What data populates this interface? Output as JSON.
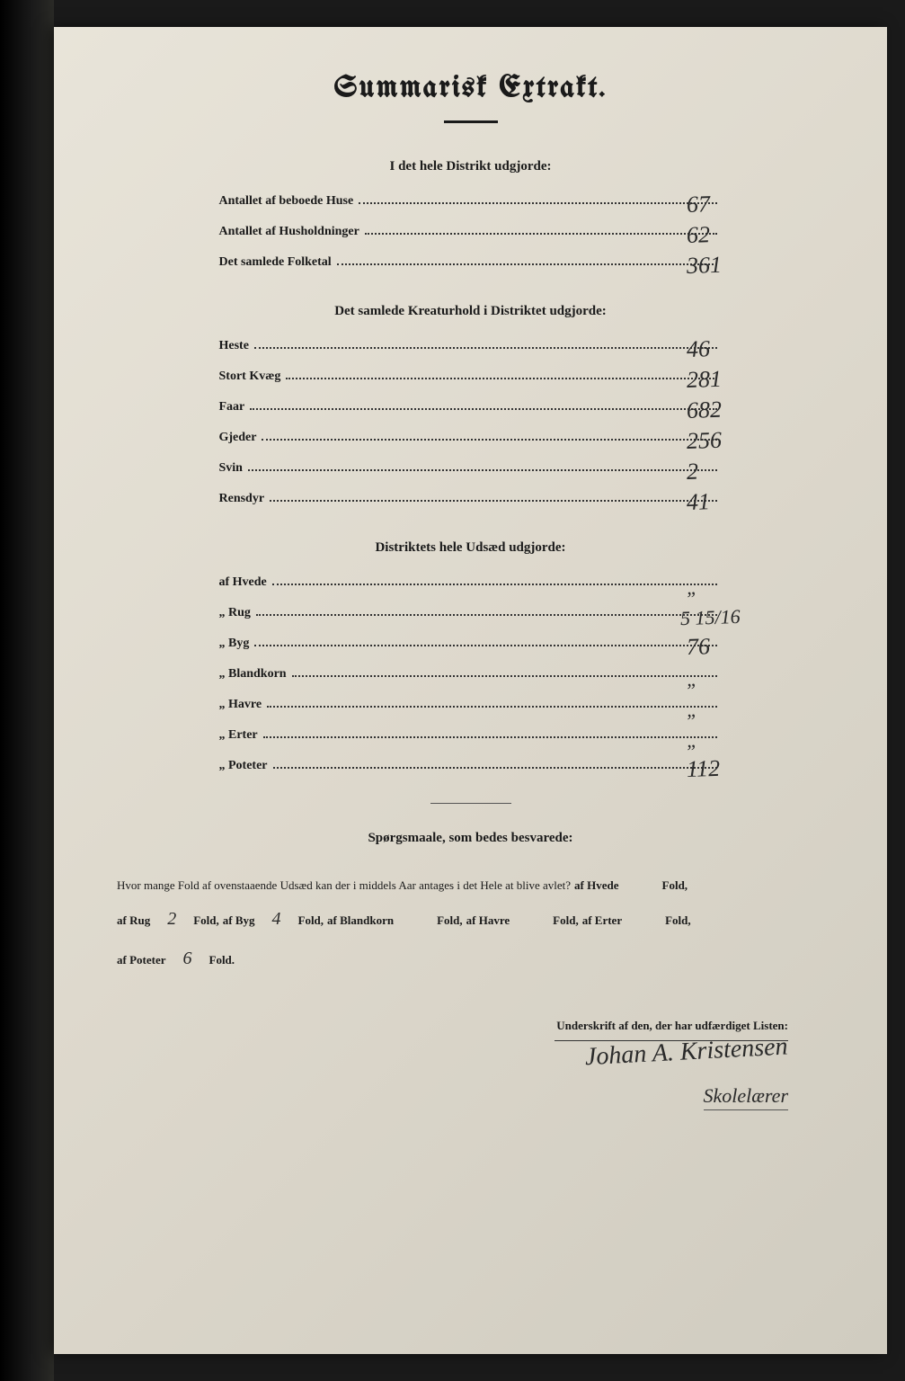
{
  "document": {
    "title": "Summarisk Extrakt.",
    "background_color": "#e0dcd0",
    "ink_color": "#1a1a1a",
    "handwriting_color": "#2a2a2a"
  },
  "section1": {
    "heading": "I det hele Distrikt udgjorde:",
    "rows": [
      {
        "label": "Antallet af beboede Huse",
        "value": "67"
      },
      {
        "label": "Antallet af Husholdninger",
        "value": "62"
      },
      {
        "label": "Det samlede Folketal",
        "value": "361"
      }
    ]
  },
  "section2": {
    "heading": "Det samlede Kreaturhold i Distriktet udgjorde:",
    "rows": [
      {
        "label": "Heste",
        "value": "46"
      },
      {
        "label": "Stort Kvæg",
        "value": "281"
      },
      {
        "label": "Faar",
        "value": "682"
      },
      {
        "label": "Gjeder",
        "value": "256"
      },
      {
        "label": "Svin",
        "value": "2"
      },
      {
        "label": "Rensdyr",
        "value": "41"
      }
    ]
  },
  "section3": {
    "heading": "Distriktets hele Udsæd udgjorde:",
    "rows": [
      {
        "label": "af Hvede",
        "value": "„"
      },
      {
        "label": "„ Rug",
        "value": "5 15/16"
      },
      {
        "label": "„ Byg",
        "value": "76"
      },
      {
        "label": "„ Blandkorn",
        "value": "„"
      },
      {
        "label": "„ Havre",
        "value": "„"
      },
      {
        "label": "„ Erter",
        "value": "„"
      },
      {
        "label": "„ Poteter",
        "value": "112"
      }
    ]
  },
  "questions": {
    "heading": "Spørgsmaale, som bedes besvarede:",
    "intro": "Hvor mange Fold af ovenstaaende Udsæd kan der i middels Aar antages i det Hele at blive avlet?",
    "items": [
      {
        "label": "af Hvede",
        "value": "",
        "suffix": "Fold,"
      },
      {
        "label": "af Rug",
        "value": "2",
        "suffix": "Fold,"
      },
      {
        "label": "af Byg",
        "value": "4",
        "suffix": "Fold,"
      },
      {
        "label": "af Blandkorn",
        "value": "",
        "suffix": "Fold,"
      },
      {
        "label": "af Havre",
        "value": "",
        "suffix": "Fold,"
      },
      {
        "label": "af Erter",
        "value": "",
        "suffix": "Fold,"
      },
      {
        "label": "af Poteter",
        "value": "6",
        "suffix": "Fold."
      }
    ]
  },
  "signature": {
    "label": "Underskrift af den, der har udfærdiget Listen:",
    "name": "Johan A. Kristensen",
    "title": "Skolelærer"
  }
}
